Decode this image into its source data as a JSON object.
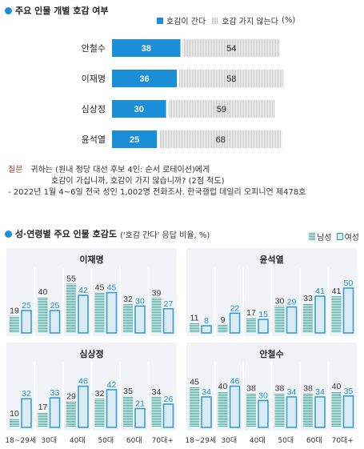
{
  "chart_data": [
    {
      "type": "bar",
      "orientation": "horizontal",
      "stacked": true,
      "title": "주요 인물 개별 호감 여부",
      "categories": [
        "안철수",
        "이재명",
        "심상정",
        "윤석열"
      ],
      "series": [
        {
          "name": "호감이 간다",
          "values": [
            38,
            36,
            30,
            25
          ],
          "color": "#1a8fd8"
        },
        {
          "name": "호감 가지 않는다",
          "values": [
            54,
            58,
            59,
            68
          ],
          "color": "#cfcfcf"
        }
      ],
      "unit": "(%)",
      "legend_position": "top-right"
    },
    {
      "type": "bar",
      "title": "성·연령별 주요 인물 호감도",
      "subtitle": "('호감 간다' 응답 비율, %)",
      "categories": [
        "18~29세",
        "30대",
        "40대",
        "50대",
        "60대",
        "70대+"
      ],
      "legend_position": "top-right",
      "panels": [
        {
          "name": "이재명",
          "series": [
            {
              "name": "남성",
              "values": [
                19,
                40,
                55,
                45,
                32,
                39
              ]
            },
            {
              "name": "여성",
              "values": [
                25,
                25,
                42,
                45,
                30,
                27
              ]
            }
          ]
        },
        {
          "name": "윤석열",
          "series": [
            {
              "name": "남성",
              "values": [
                11,
                9,
                17,
                30,
                33,
                41
              ]
            },
            {
              "name": "여성",
              "values": [
                8,
                22,
                15,
                29,
                41,
                50
              ]
            }
          ]
        },
        {
          "name": "심상정",
          "series": [
            {
              "name": "남성",
              "values": [
                10,
                17,
                29,
                32,
                35,
                34
              ]
            },
            {
              "name": "여성",
              "values": [
                32,
                33,
                46,
                42,
                21,
                26
              ]
            }
          ]
        },
        {
          "name": "안철수",
          "series": [
            {
              "name": "남성",
              "values": [
                45,
                40,
                38,
                38,
                38,
                40
              ]
            },
            {
              "name": "여성",
              "values": [
                34,
                46,
                30,
                34,
                34,
                35
              ]
            }
          ]
        }
      ],
      "colors": {
        "male": "#3bb0a5",
        "female_border": "#2a9bd3",
        "female_fill": "#dceaf3",
        "male_label": "#333333",
        "female_label": "#1a8fd8"
      }
    }
  ],
  "legend1": {
    "positive": "호감이 간다",
    "negative": "호감 가지 않는다",
    "unit": "(%)"
  },
  "legend2": {
    "male": "남성",
    "female": "여성"
  },
  "notes": {
    "q_label": "질문",
    "q_line1": "귀하는 (원내 정당 대선 후보 4인: 순서 로테이션)에게",
    "q_line2": "호감이 가십니까, 호감이 가지 않습니까? (2점 척도)",
    "source": "- 2022년 1월 4~6일 전국 성인 1,002명 전화조사. 한국갤럽 데일리 오피니언 제478호"
  }
}
